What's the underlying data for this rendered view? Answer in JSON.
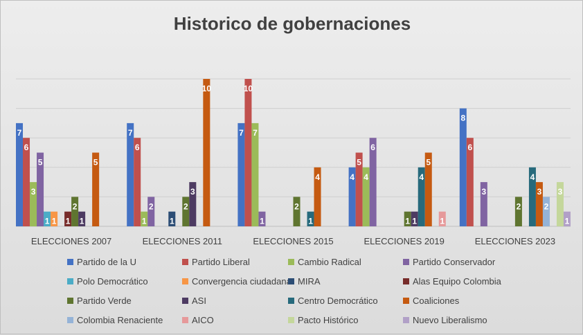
{
  "chart_data": {
    "type": "bar",
    "title": "Historico de gobernaciones",
    "xlabel": "",
    "ylabel": "",
    "ylim": [
      0,
      10
    ],
    "grid": true,
    "legend_position": "bottom",
    "categories": [
      "ELECCIONES 2007",
      "ELECCIONES 2011",
      "ELECCIONES 2015",
      "ELECCIONES 2019",
      "ELECCIONES 2023"
    ],
    "series": [
      {
        "name": "Partido de la U",
        "color": "#4472C4",
        "values": [
          7,
          7,
          7,
          4,
          8
        ]
      },
      {
        "name": "Partido Liberal",
        "color": "#C0504D",
        "values": [
          6,
          6,
          10,
          5,
          6
        ]
      },
      {
        "name": "Cambio Radical",
        "color": "#9BBB59",
        "values": [
          3,
          1,
          7,
          4,
          null
        ]
      },
      {
        "name": "Partido Conservador",
        "color": "#8064A2",
        "values": [
          5,
          2,
          1,
          6,
          3
        ]
      },
      {
        "name": "Polo Democrático",
        "color": "#4BACC6",
        "values": [
          1,
          null,
          null,
          null,
          null
        ]
      },
      {
        "name": "Convergencia ciudadana",
        "color": "#F79646",
        "values": [
          1,
          null,
          null,
          null,
          null
        ]
      },
      {
        "name": "MIRA",
        "color": "#2C4D75",
        "values": [
          null,
          1,
          null,
          null,
          null
        ]
      },
      {
        "name": "Alas Equipo Colombia",
        "color": "#772C2A",
        "values": [
          1,
          null,
          null,
          null,
          null
        ]
      },
      {
        "name": "Partido Verde",
        "color": "#5F7530",
        "values": [
          2,
          2,
          2,
          1,
          2
        ]
      },
      {
        "name": "ASI",
        "color": "#4D3B62",
        "values": [
          1,
          3,
          null,
          1,
          null
        ]
      },
      {
        "name": "Centro Democrático",
        "color": "#276A7C",
        "values": [
          null,
          null,
          1,
          4,
          4
        ]
      },
      {
        "name": "Coaliciones",
        "color": "#C55A11",
        "values": [
          5,
          10,
          4,
          5,
          3
        ]
      },
      {
        "name": "Colombia Renaciente",
        "color": "#95B3D7",
        "values": [
          null,
          null,
          null,
          null,
          2
        ]
      },
      {
        "name": "AICO",
        "color": "#E6999A",
        "values": [
          null,
          null,
          null,
          1,
          null
        ]
      },
      {
        "name": "Pacto Histórico",
        "color": "#C4D79B",
        "values": [
          null,
          null,
          null,
          null,
          3
        ]
      },
      {
        "name": "Nuevo Liberalismo",
        "color": "#B1A0C7",
        "values": [
          null,
          null,
          null,
          null,
          1
        ]
      }
    ]
  }
}
